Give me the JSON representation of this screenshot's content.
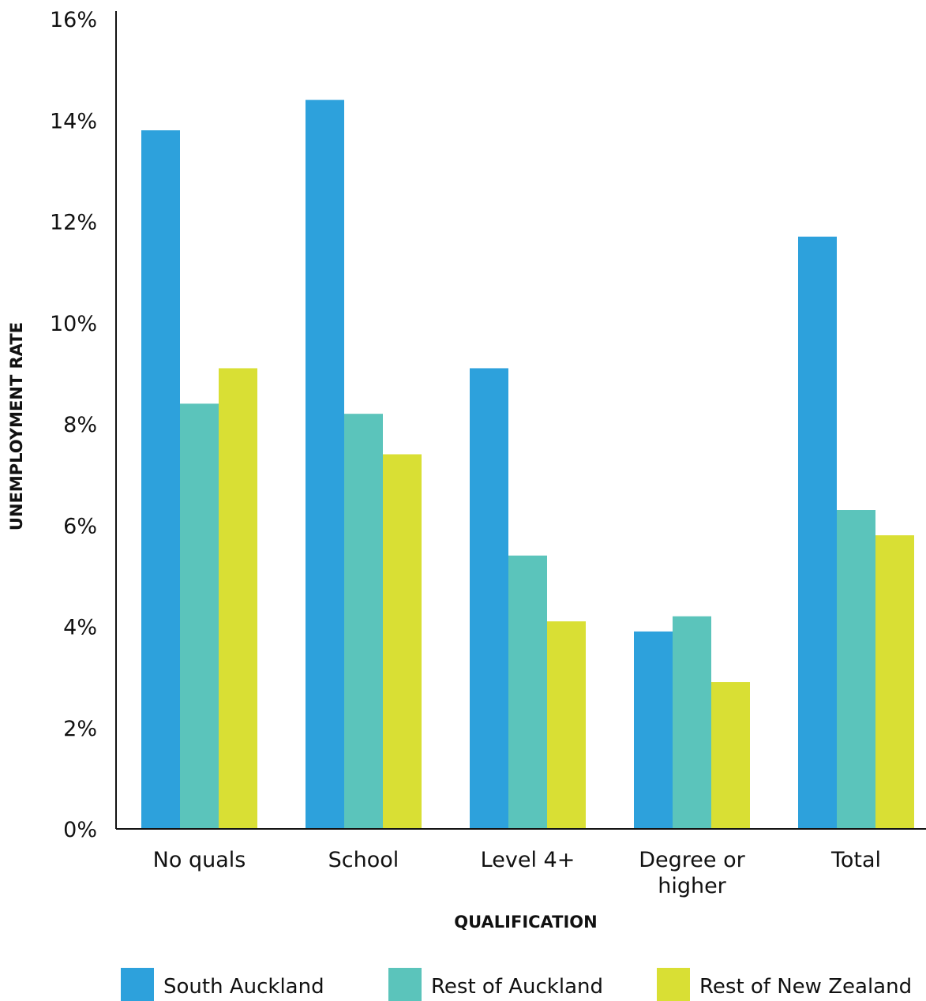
{
  "chart_data": {
    "type": "bar",
    "title": "",
    "xlabel": "QUALIFICATION",
    "ylabel": "UNEMPLOYMENT RATE",
    "categories": [
      [
        "No quals"
      ],
      [
        "School"
      ],
      [
        "Level 4+"
      ],
      [
        "Degree or",
        "higher"
      ],
      [
        "Total"
      ]
    ],
    "series": [
      {
        "name": "South Auckland",
        "color": "#2da1dc",
        "values": [
          13.8,
          14.4,
          9.1,
          3.9,
          11.7
        ]
      },
      {
        "name": "Rest of Auckland",
        "color": "#5bc4bb",
        "values": [
          8.4,
          8.2,
          5.4,
          4.2,
          6.3
        ]
      },
      {
        "name": "Rest of New Zealand",
        "color": "#d9df34",
        "values": [
          9.1,
          7.4,
          4.1,
          2.9,
          5.8
        ]
      }
    ],
    "ylim": [
      0,
      16
    ],
    "yticks": [
      0,
      2,
      4,
      6,
      8,
      10,
      12,
      14,
      16
    ],
    "ytick_suffix": "%",
    "grid": false,
    "legend_position": "bottom"
  }
}
